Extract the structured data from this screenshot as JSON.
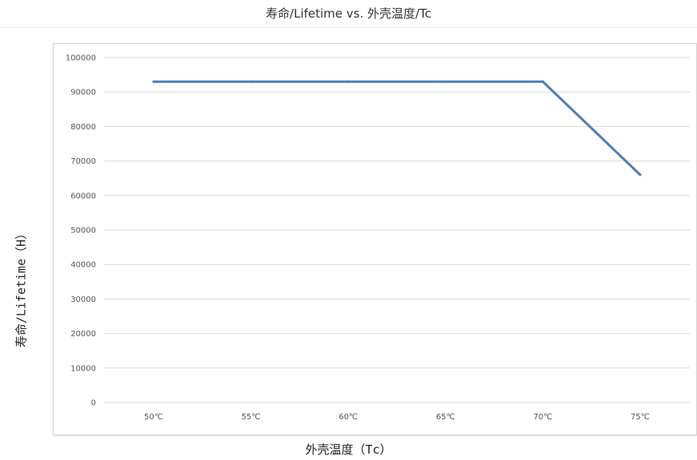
{
  "chart_data": {
    "type": "line",
    "title": "寿命/Lifetime vs. 外壳温度/Tc",
    "xlabel": "外壳温度（Tc）",
    "ylabel": "寿命/Lifetime（H）",
    "categories": [
      "50℃",
      "55℃",
      "60℃",
      "65℃",
      "70℃",
      "75℃"
    ],
    "series": [
      {
        "values": [
          93000,
          93000,
          93000,
          93000,
          93000,
          66000
        ]
      }
    ],
    "ylim": [
      0,
      100000
    ],
    "yticks": [
      "0",
      "10000",
      "20000",
      "30000",
      "40000",
      "50000",
      "60000",
      "70000",
      "80000",
      "90000",
      "100000"
    ],
    "grid": true,
    "legend": "none",
    "line_color": "#4a7ebb",
    "grid_color": "#d9d9d9"
  }
}
